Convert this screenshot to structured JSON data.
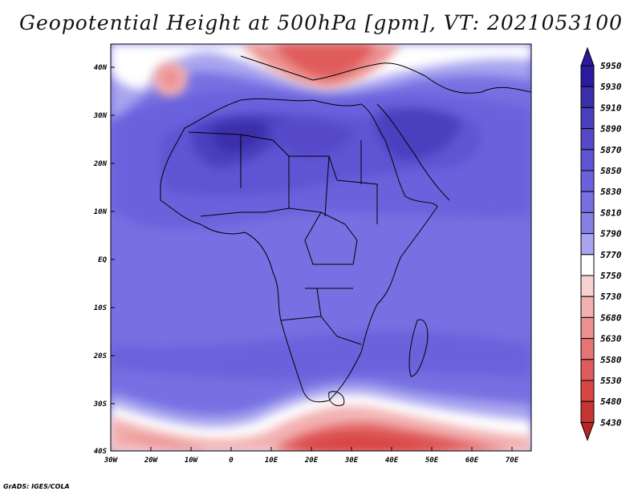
{
  "title": "Geopotential Height at 500hPa [gpm], VT: 2021053100",
  "footer": "GrADS: IGES/COLA",
  "map": {
    "lat_labels": [
      "40N",
      "30N",
      "20N",
      "10N",
      "EQ",
      "10S",
      "20S",
      "30S",
      "40S"
    ],
    "lon_labels": [
      "30W",
      "20W",
      "10W",
      "0",
      "10E",
      "20E",
      "30E",
      "40E",
      "50E",
      "60E",
      "70E"
    ]
  },
  "legend": {
    "levels": [
      "5950",
      "5930",
      "5910",
      "5890",
      "5870",
      "5850",
      "5830",
      "5810",
      "5790",
      "5770",
      "5750",
      "5730",
      "5680",
      "5630",
      "5580",
      "5530",
      "5480",
      "5430"
    ],
    "colors": [
      "#2c1a9e",
      "#3a2fa8",
      "#4a3fbf",
      "#5549c9",
      "#5f55d4",
      "#6a62dc",
      "#7670e2",
      "#8580e6",
      "#a8a4ef",
      "#ffffff",
      "#f7d2d2",
      "#f2b0b0",
      "#ec9090",
      "#e67474",
      "#e05b5b",
      "#d84545",
      "#c83434",
      "#b82424"
    ]
  }
}
